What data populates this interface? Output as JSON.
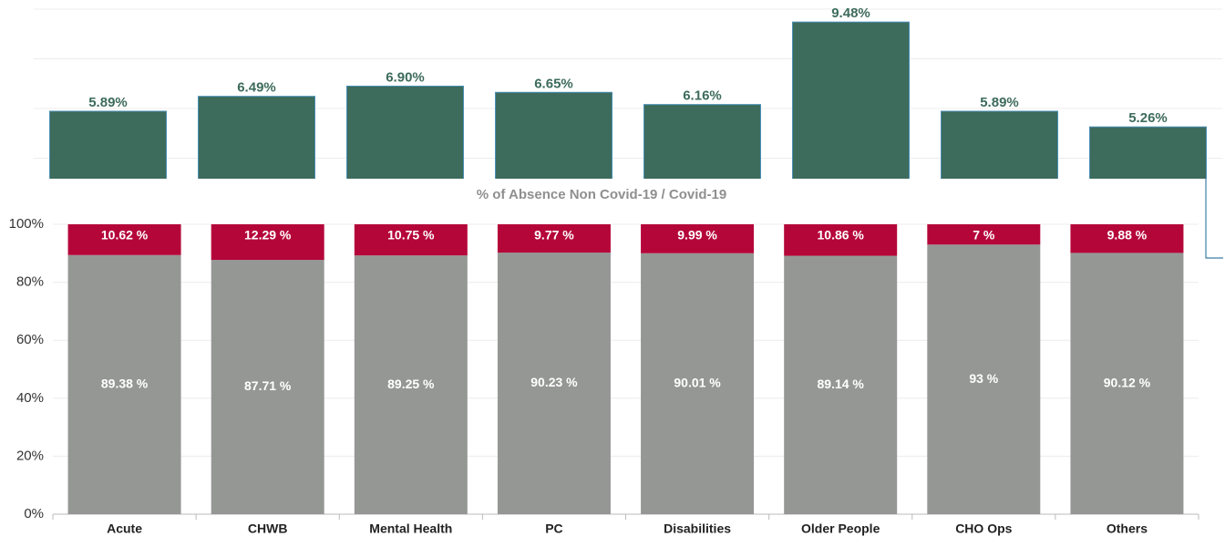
{
  "chart_data": [
    {
      "type": "bar",
      "values": [
        5.89,
        6.49,
        6.9,
        6.65,
        6.16,
        9.48,
        5.89,
        5.26
      ],
      "value_labels": [
        "5.89%",
        "6.49%",
        "6.90%",
        "6.65%",
        "6.16%",
        "9.48%",
        "5.89%",
        "5.26%"
      ],
      "color": "#3d6b5c",
      "ylim": [
        0,
        10
      ],
      "yticks": [
        0,
        2,
        4,
        6,
        8,
        10
      ],
      "grid": true
    },
    {
      "type": "stacked_bar",
      "title": "% of Absence Non Covid-19 / Covid-19",
      "categories": [
        "Acute",
        "CHWB",
        "Mental Health",
        "PC",
        "Disabilities",
        "Older People",
        "CHO Ops",
        "Others"
      ],
      "series": [
        {
          "color": "#959795",
          "values": [
            89.38,
            87.71,
            89.25,
            90.23,
            90.01,
            89.14,
            93,
            90.12
          ],
          "value_labels": [
            "89.38 %",
            "87.71 %",
            "89.25 %",
            "90.23 %",
            "90.01 %",
            "89.14 %",
            "93 %",
            "90.12 %"
          ]
        },
        {
          "color": "#b5063a",
          "values": [
            10.62,
            12.29,
            10.75,
            9.77,
            9.99,
            10.86,
            7,
            9.88
          ],
          "value_labels": [
            "10.62 %",
            "12.29 %",
            "10.75 %",
            "9.77 %",
            "9.99 %",
            "10.86 %",
            "7 %",
            "9.88 %"
          ]
        }
      ],
      "ylim": [
        0,
        100
      ],
      "yticks": [
        {
          "value": 0,
          "label": "0%"
        },
        {
          "value": 20,
          "label": "20%"
        },
        {
          "value": 40,
          "label": "40%"
        },
        {
          "value": 60,
          "label": "60%"
        },
        {
          "value": 80,
          "label": "80%"
        },
        {
          "value": 100,
          "label": "100%"
        }
      ],
      "grid": true
    }
  ]
}
